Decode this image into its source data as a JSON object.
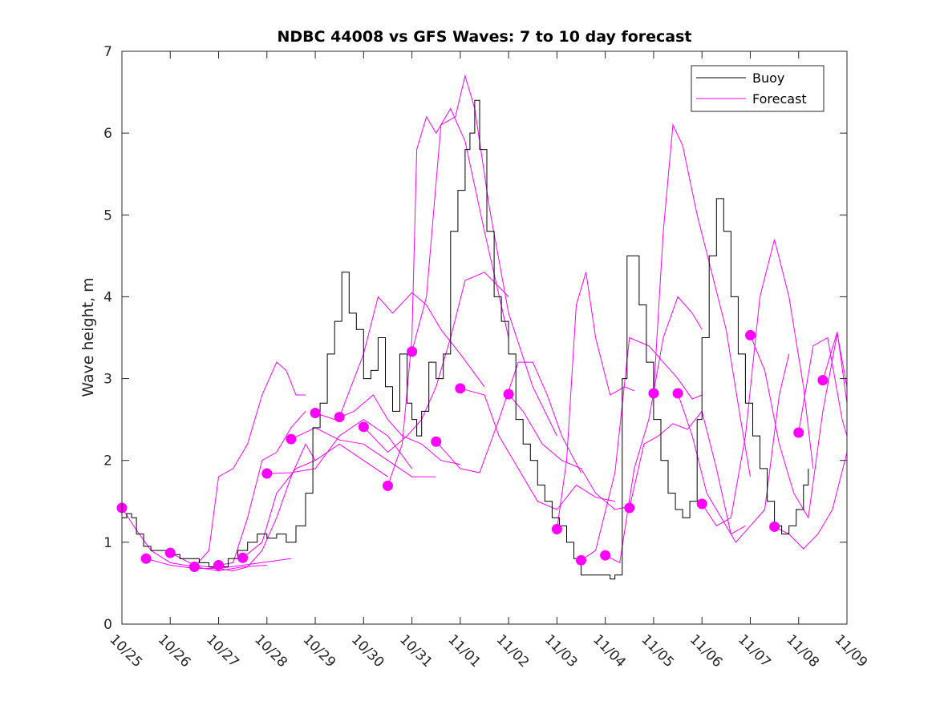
{
  "chart_data": {
    "type": "line",
    "title": "NDBC 44008 vs GFS Waves: 7 to 10 day forecast",
    "xlabel": "",
    "ylabel": "Wave height, m",
    "xlim_days": [
      0,
      15
    ],
    "ylim": [
      0,
      7
    ],
    "x_tick_labels": [
      "10/25",
      "10/26",
      "10/27",
      "10/28",
      "10/29",
      "10/30",
      "10/31",
      "11/01",
      "11/02",
      "11/03",
      "11/04",
      "11/05",
      "11/06",
      "11/07",
      "11/08",
      "11/09"
    ],
    "y_ticks": [
      0,
      1,
      2,
      3,
      4,
      5,
      6,
      7
    ],
    "grid": false,
    "legend": {
      "position": "top-right",
      "entries": [
        {
          "label": "Buoy",
          "color": "#000000"
        },
        {
          "label": "Forecast",
          "color": "#ff00ff"
        }
      ]
    },
    "colors": {
      "buoy": "#000000",
      "forecast": "#ff00ff",
      "axis": "#262626"
    },
    "buoy": {
      "name": "Buoy",
      "x_days": [
        0,
        0.1,
        0.2,
        0.3,
        0.45,
        0.6,
        0.8,
        1.0,
        1.2,
        1.4,
        1.6,
        1.8,
        2.0,
        2.2,
        2.4,
        2.6,
        2.8,
        3.0,
        3.2,
        3.4,
        3.6,
        3.8,
        3.95,
        4.1,
        4.25,
        4.4,
        4.55,
        4.7,
        4.85,
        5.0,
        5.15,
        5.3,
        5.45,
        5.6,
        5.75,
        5.9,
        6.0,
        6.1,
        6.2,
        6.35,
        6.5,
        6.65,
        6.8,
        6.95,
        7.1,
        7.2,
        7.3,
        7.4,
        7.55,
        7.7,
        7.85,
        8.0,
        8.15,
        8.3,
        8.45,
        8.6,
        8.75,
        8.9,
        9.05,
        9.2,
        9.35,
        9.5,
        9.65,
        9.8,
        9.95,
        10.1,
        10.2,
        10.35,
        10.45,
        10.55,
        10.7,
        10.85,
        11.0,
        11.15,
        11.3,
        11.45,
        11.6,
        11.75,
        11.9,
        12.0,
        12.15,
        12.3,
        12.45,
        12.6,
        12.75,
        12.9,
        13.05,
        13.2,
        13.35,
        13.5,
        13.65,
        13.8,
        13.95,
        14.1,
        14.2
      ],
      "y_m": [
        1.3,
        1.35,
        1.3,
        1.1,
        0.95,
        0.9,
        0.9,
        0.85,
        0.8,
        0.8,
        0.75,
        0.7,
        0.7,
        0.8,
        0.9,
        1.0,
        1.1,
        1.05,
        1.1,
        1.0,
        1.2,
        1.6,
        2.4,
        2.7,
        3.3,
        3.7,
        4.3,
        3.8,
        3.6,
        3.0,
        3.1,
        3.5,
        2.9,
        2.6,
        3.3,
        2.7,
        2.5,
        2.3,
        2.6,
        3.2,
        3.0,
        3.3,
        4.8,
        5.3,
        5.8,
        6.0,
        6.4,
        5.8,
        4.8,
        4.0,
        3.7,
        3.3,
        2.5,
        2.2,
        2.0,
        1.7,
        1.5,
        1.3,
        1.2,
        1.0,
        0.8,
        0.6,
        0.6,
        0.6,
        0.6,
        0.55,
        0.6,
        3.0,
        4.5,
        4.5,
        3.9,
        3.2,
        2.5,
        2.0,
        1.6,
        1.4,
        1.3,
        1.5,
        2.5,
        3.5,
        4.5,
        5.2,
        4.8,
        4.0,
        3.3,
        2.7,
        2.3,
        1.9,
        1.5,
        1.2,
        1.1,
        1.2,
        1.4,
        1.7,
        1.9
      ]
    },
    "forecasts": [
      {
        "start_day": 0.0,
        "x_days": [
          0,
          0.3,
          0.6,
          1.0,
          1.5,
          2.0,
          2.5,
          3.0
        ],
        "y_m": [
          1.42,
          1.15,
          0.9,
          0.75,
          0.7,
          0.65,
          0.7,
          0.72
        ]
      },
      {
        "start_day": 0.5,
        "x_days": [
          0.5,
          1.0,
          1.5,
          2.0,
          2.5,
          3.0,
          3.5
        ],
        "y_m": [
          0.8,
          0.72,
          0.68,
          0.68,
          0.72,
          0.76,
          0.8
        ]
      },
      {
        "start_day": 1.0,
        "x_days": [
          1.0,
          1.5,
          2.0,
          2.3,
          2.6,
          2.9,
          3.2,
          3.5,
          3.8,
          4.0
        ],
        "y_m": [
          0.87,
          0.72,
          0.68,
          0.65,
          0.7,
          0.9,
          1.3,
          1.8,
          2.2,
          2.0
        ]
      },
      {
        "start_day": 1.5,
        "x_days": [
          1.5,
          1.8,
          2.0,
          2.3,
          2.6,
          2.9,
          3.2,
          3.4,
          3.6,
          3.8
        ],
        "y_m": [
          0.7,
          0.9,
          1.8,
          1.9,
          2.2,
          2.8,
          3.2,
          3.1,
          2.8,
          2.8
        ]
      },
      {
        "start_day": 2.0,
        "x_days": [
          2.0,
          2.3,
          2.6,
          2.9,
          3.2,
          3.5,
          3.8
        ],
        "y_m": [
          0.72,
          0.75,
          1.3,
          2.0,
          2.1,
          2.4,
          2.6
        ]
      },
      {
        "start_day": 2.5,
        "x_days": [
          2.5,
          2.9,
          3.2,
          3.6,
          4.0,
          4.5,
          5.0,
          5.5
        ],
        "y_m": [
          0.81,
          1.0,
          1.6,
          1.9,
          2.0,
          2.2,
          2.0,
          1.8
        ]
      },
      {
        "start_day": 3.0,
        "x_days": [
          3.0,
          3.5,
          4.0,
          4.5,
          5.0,
          5.5,
          6.0
        ],
        "y_m": [
          1.84,
          1.85,
          1.9,
          2.3,
          2.5,
          2.3,
          1.9
        ]
      },
      {
        "start_day": 3.5,
        "x_days": [
          3.5,
          4.0,
          4.5,
          5.0,
          5.5,
          6.0,
          6.5
        ],
        "y_m": [
          2.26,
          2.4,
          2.25,
          2.2,
          2.0,
          1.8,
          1.8
        ]
      },
      {
        "start_day": 4.0,
        "x_days": [
          4.0,
          4.4,
          4.8,
          5.2,
          5.5,
          5.8,
          6.2,
          6.6,
          7.0
        ],
        "y_m": [
          2.58,
          2.5,
          2.6,
          2.8,
          2.5,
          2.3,
          2.2,
          2.0,
          1.95
        ]
      },
      {
        "start_day": 4.5,
        "x_days": [
          4.5,
          5.0,
          5.3,
          5.6,
          6.0,
          6.3,
          6.6,
          7.0,
          7.5
        ],
        "y_m": [
          2.53,
          3.3,
          4.0,
          3.8,
          4.05,
          3.9,
          3.6,
          3.3,
          2.9
        ]
      },
      {
        "start_day": 5.0,
        "x_days": [
          5.0,
          5.5,
          5.9,
          6.2,
          6.5,
          6.8,
          7.1,
          7.5,
          8.0
        ],
        "y_m": [
          2.41,
          2.1,
          2.3,
          2.5,
          2.9,
          3.5,
          4.2,
          4.3,
          4.0
        ]
      },
      {
        "start_day": 5.5,
        "x_days": [
          5.5,
          5.8,
          6.0,
          6.1,
          6.3,
          6.5,
          6.8,
          7.1,
          7.5,
          8.0
        ],
        "y_m": [
          1.69,
          2.2,
          3.5,
          5.8,
          6.2,
          6.0,
          6.3,
          5.9,
          4.8,
          3.5
        ]
      },
      {
        "start_day": 6.0,
        "x_days": [
          6.0,
          6.3,
          6.6,
          6.9,
          7.1,
          7.3,
          7.6,
          8.0,
          8.5,
          9.0
        ],
        "y_m": [
          3.33,
          4.0,
          6.1,
          6.2,
          6.7,
          6.3,
          5.1,
          3.8,
          2.9,
          2.3
        ]
      },
      {
        "start_day": 6.5,
        "x_days": [
          6.5,
          7.0,
          7.4,
          7.8,
          8.2,
          8.5,
          8.8,
          9.1,
          9.5
        ],
        "y_m": [
          2.23,
          1.9,
          1.85,
          2.5,
          3.2,
          3.2,
          2.8,
          2.3,
          1.85
        ]
      },
      {
        "start_day": 7.0,
        "x_days": [
          7.0,
          7.5,
          7.8,
          8.2,
          8.6,
          9.0,
          9.4,
          9.8,
          10.2
        ],
        "y_m": [
          2.88,
          2.8,
          2.3,
          1.9,
          1.5,
          1.4,
          1.7,
          1.55,
          1.5
        ]
      },
      {
        "start_day": 8.0,
        "x_days": [
          8.0,
          8.3,
          8.7,
          9.1,
          9.5,
          9.8,
          10.2,
          10.6
        ],
        "y_m": [
          2.81,
          2.6,
          2.2,
          2.0,
          1.9,
          1.6,
          1.4,
          1.45
        ]
      },
      {
        "start_day": 9.0,
        "x_days": [
          9.0,
          9.2,
          9.4,
          9.6,
          9.8,
          10.1,
          10.4,
          10.6
        ],
        "y_m": [
          1.16,
          2.0,
          3.9,
          4.3,
          3.5,
          2.8,
          2.9,
          2.85
        ]
      },
      {
        "start_day": 9.5,
        "x_days": [
          9.5,
          9.8,
          10.2,
          10.5,
          10.9,
          11.2,
          11.5,
          11.8,
          12.0
        ],
        "y_m": [
          0.78,
          0.9,
          1.85,
          3.5,
          3.4,
          3.2,
          3.0,
          2.75,
          2.8
        ]
      },
      {
        "start_day": 10.0,
        "x_days": [
          10.0,
          10.3,
          10.6,
          10.9,
          11.2,
          11.5,
          11.8,
          12.0
        ],
        "y_m": [
          0.84,
          0.75,
          1.9,
          2.5,
          3.5,
          4.0,
          3.8,
          3.6
        ]
      },
      {
        "start_day": 10.5,
        "x_days": [
          10.5,
          10.8,
          11.1,
          11.4,
          11.7,
          12.0,
          12.3,
          12.6,
          12.9
        ],
        "y_m": [
          1.42,
          2.2,
          2.3,
          2.45,
          2.38,
          2.6,
          1.9,
          1.1,
          1.2
        ]
      },
      {
        "start_day": 11.0,
        "x_days": [
          11.0,
          11.2,
          11.4,
          11.6,
          11.9,
          12.2,
          12.5,
          12.8,
          13.0
        ],
        "y_m": [
          2.82,
          4.8,
          6.1,
          5.85,
          5.0,
          4.3,
          3.6,
          2.5,
          1.8
        ]
      },
      {
        "start_day": 11.5,
        "x_days": [
          11.5,
          11.8,
          12.1,
          12.4,
          12.7,
          13.0,
          13.3,
          13.6,
          13.8
        ],
        "y_m": [
          2.82,
          2.3,
          1.6,
          1.3,
          1.0,
          1.2,
          1.4,
          2.8,
          3.3
        ]
      },
      {
        "start_day": 12.0,
        "x_days": [
          12.0,
          12.3,
          12.6,
          12.9,
          13.2,
          13.5,
          13.8,
          14.1,
          14.3
        ],
        "y_m": [
          1.47,
          1.2,
          1.3,
          2.3,
          4.0,
          4.7,
          4.0,
          2.9,
          1.9
        ]
      },
      {
        "start_day": 13.0,
        "x_days": [
          13.0,
          13.3,
          13.6,
          13.9,
          14.2,
          14.5,
          14.8,
          15.0
        ],
        "y_m": [
          3.53,
          3.1,
          2.2,
          1.6,
          1.3,
          2.6,
          3.55,
          2.9
        ]
      },
      {
        "start_day": 13.5,
        "x_days": [
          13.5,
          13.8,
          14.1,
          14.4,
          14.7,
          15.0
        ],
        "y_m": [
          1.19,
          1.1,
          0.92,
          1.1,
          1.4,
          2.1
        ]
      },
      {
        "start_day": 14.0,
        "x_days": [
          14.0,
          14.3,
          14.6,
          14.9,
          15.0
        ],
        "y_m": [
          2.34,
          3.4,
          3.5,
          2.5,
          2.3
        ]
      },
      {
        "start_day": 14.5,
        "x_days": [
          14.5,
          14.8,
          15.0
        ],
        "y_m": [
          2.98,
          3.57,
          2.7
        ]
      }
    ],
    "forecast_start_markers": {
      "x_days": [
        0,
        0.5,
        1.0,
        1.5,
        2.0,
        2.5,
        3.0,
        3.5,
        4.0,
        4.5,
        5.0,
        5.5,
        6.0,
        6.5,
        7.0,
        8.0,
        9.0,
        9.5,
        10.0,
        10.5,
        11.0,
        11.5,
        12.0,
        13.0,
        13.5,
        14.0,
        14.5
      ],
      "y_m": [
        1.42,
        0.8,
        0.87,
        0.7,
        0.72,
        0.81,
        1.84,
        2.26,
        2.58,
        2.53,
        2.41,
        1.69,
        3.33,
        2.23,
        2.88,
        2.81,
        1.16,
        0.78,
        0.84,
        1.42,
        2.82,
        2.82,
        1.47,
        3.53,
        1.19,
        2.34,
        2.98
      ]
    }
  }
}
